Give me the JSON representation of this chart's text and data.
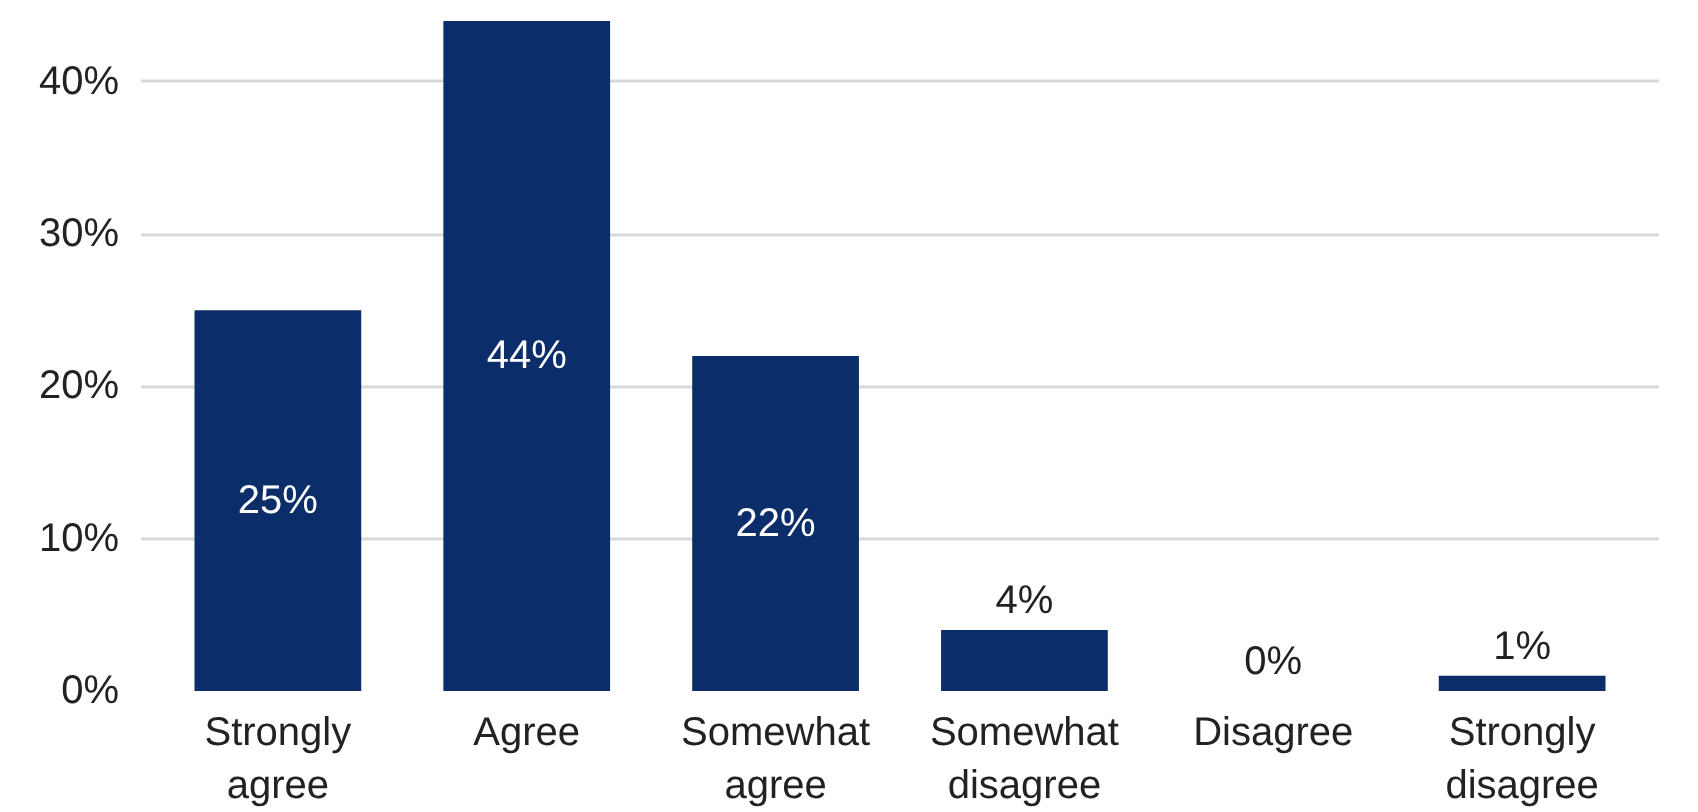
{
  "chart_data": {
    "type": "bar",
    "categories": [
      "Strongly agree",
      "Agree",
      "Somewhat agree",
      "Somewhat disagree",
      "Disagree",
      "Strongly disagree"
    ],
    "values": [
      25,
      44,
      22,
      4,
      0,
      1
    ],
    "color": "#0b2d69",
    "ylim": [
      0,
      44
    ],
    "yticks": [
      {
        "value": 0,
        "label": "0%"
      },
      {
        "value": 10,
        "label": "10%"
      },
      {
        "value": 20,
        "label": "20%"
      },
      {
        "value": 30,
        "label": "30%"
      },
      {
        "value": 40,
        "label": "40%"
      }
    ],
    "value_labels": [
      "25%",
      "44%",
      "22%",
      "4%",
      "0%",
      "1%"
    ],
    "grid": "y"
  }
}
